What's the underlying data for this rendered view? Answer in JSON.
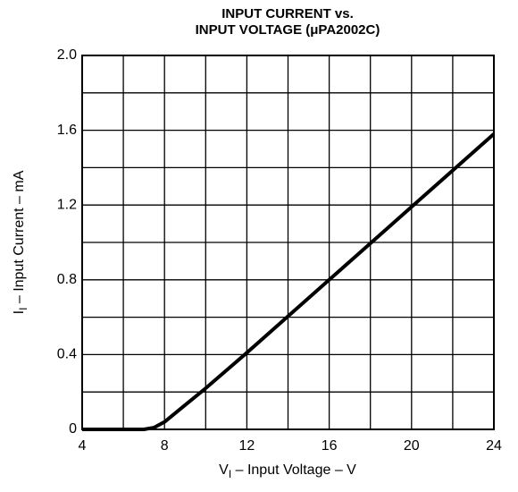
{
  "chart_data": {
    "type": "line",
    "title_lines": [
      "INPUT CURRENT vs.",
      "INPUT VOLTAGE (μPA2002C)"
    ],
    "xlabel": {
      "symbol": "V",
      "subscript": "I",
      "text": " – Input Voltage – V"
    },
    "ylabel": {
      "symbol": "I",
      "subscript": "I",
      "text": " – Input Current – mA"
    },
    "x": [
      4,
      7,
      7.5,
      8,
      9,
      10,
      12,
      16,
      20,
      24
    ],
    "series": [
      {
        "name": "Input current",
        "color": "#000000",
        "values": [
          0,
          0,
          0.01,
          0.04,
          0.13,
          0.22,
          0.41,
          0.8,
          1.19,
          1.58
        ]
      }
    ],
    "xlim": [
      4,
      24
    ],
    "ylim": [
      0,
      2
    ],
    "xticks": [
      4,
      8,
      12,
      16,
      20,
      24
    ],
    "yticks": [
      0,
      0.4,
      0.8,
      1.2,
      1.6,
      {
        "value": 2,
        "label": "2.0"
      }
    ],
    "x_minor_ticks": [
      6,
      10,
      14,
      18,
      22
    ],
    "y_minor_ticks": [
      0.2,
      0.6,
      1.0,
      1.4,
      1.8
    ],
    "grid": true
  }
}
